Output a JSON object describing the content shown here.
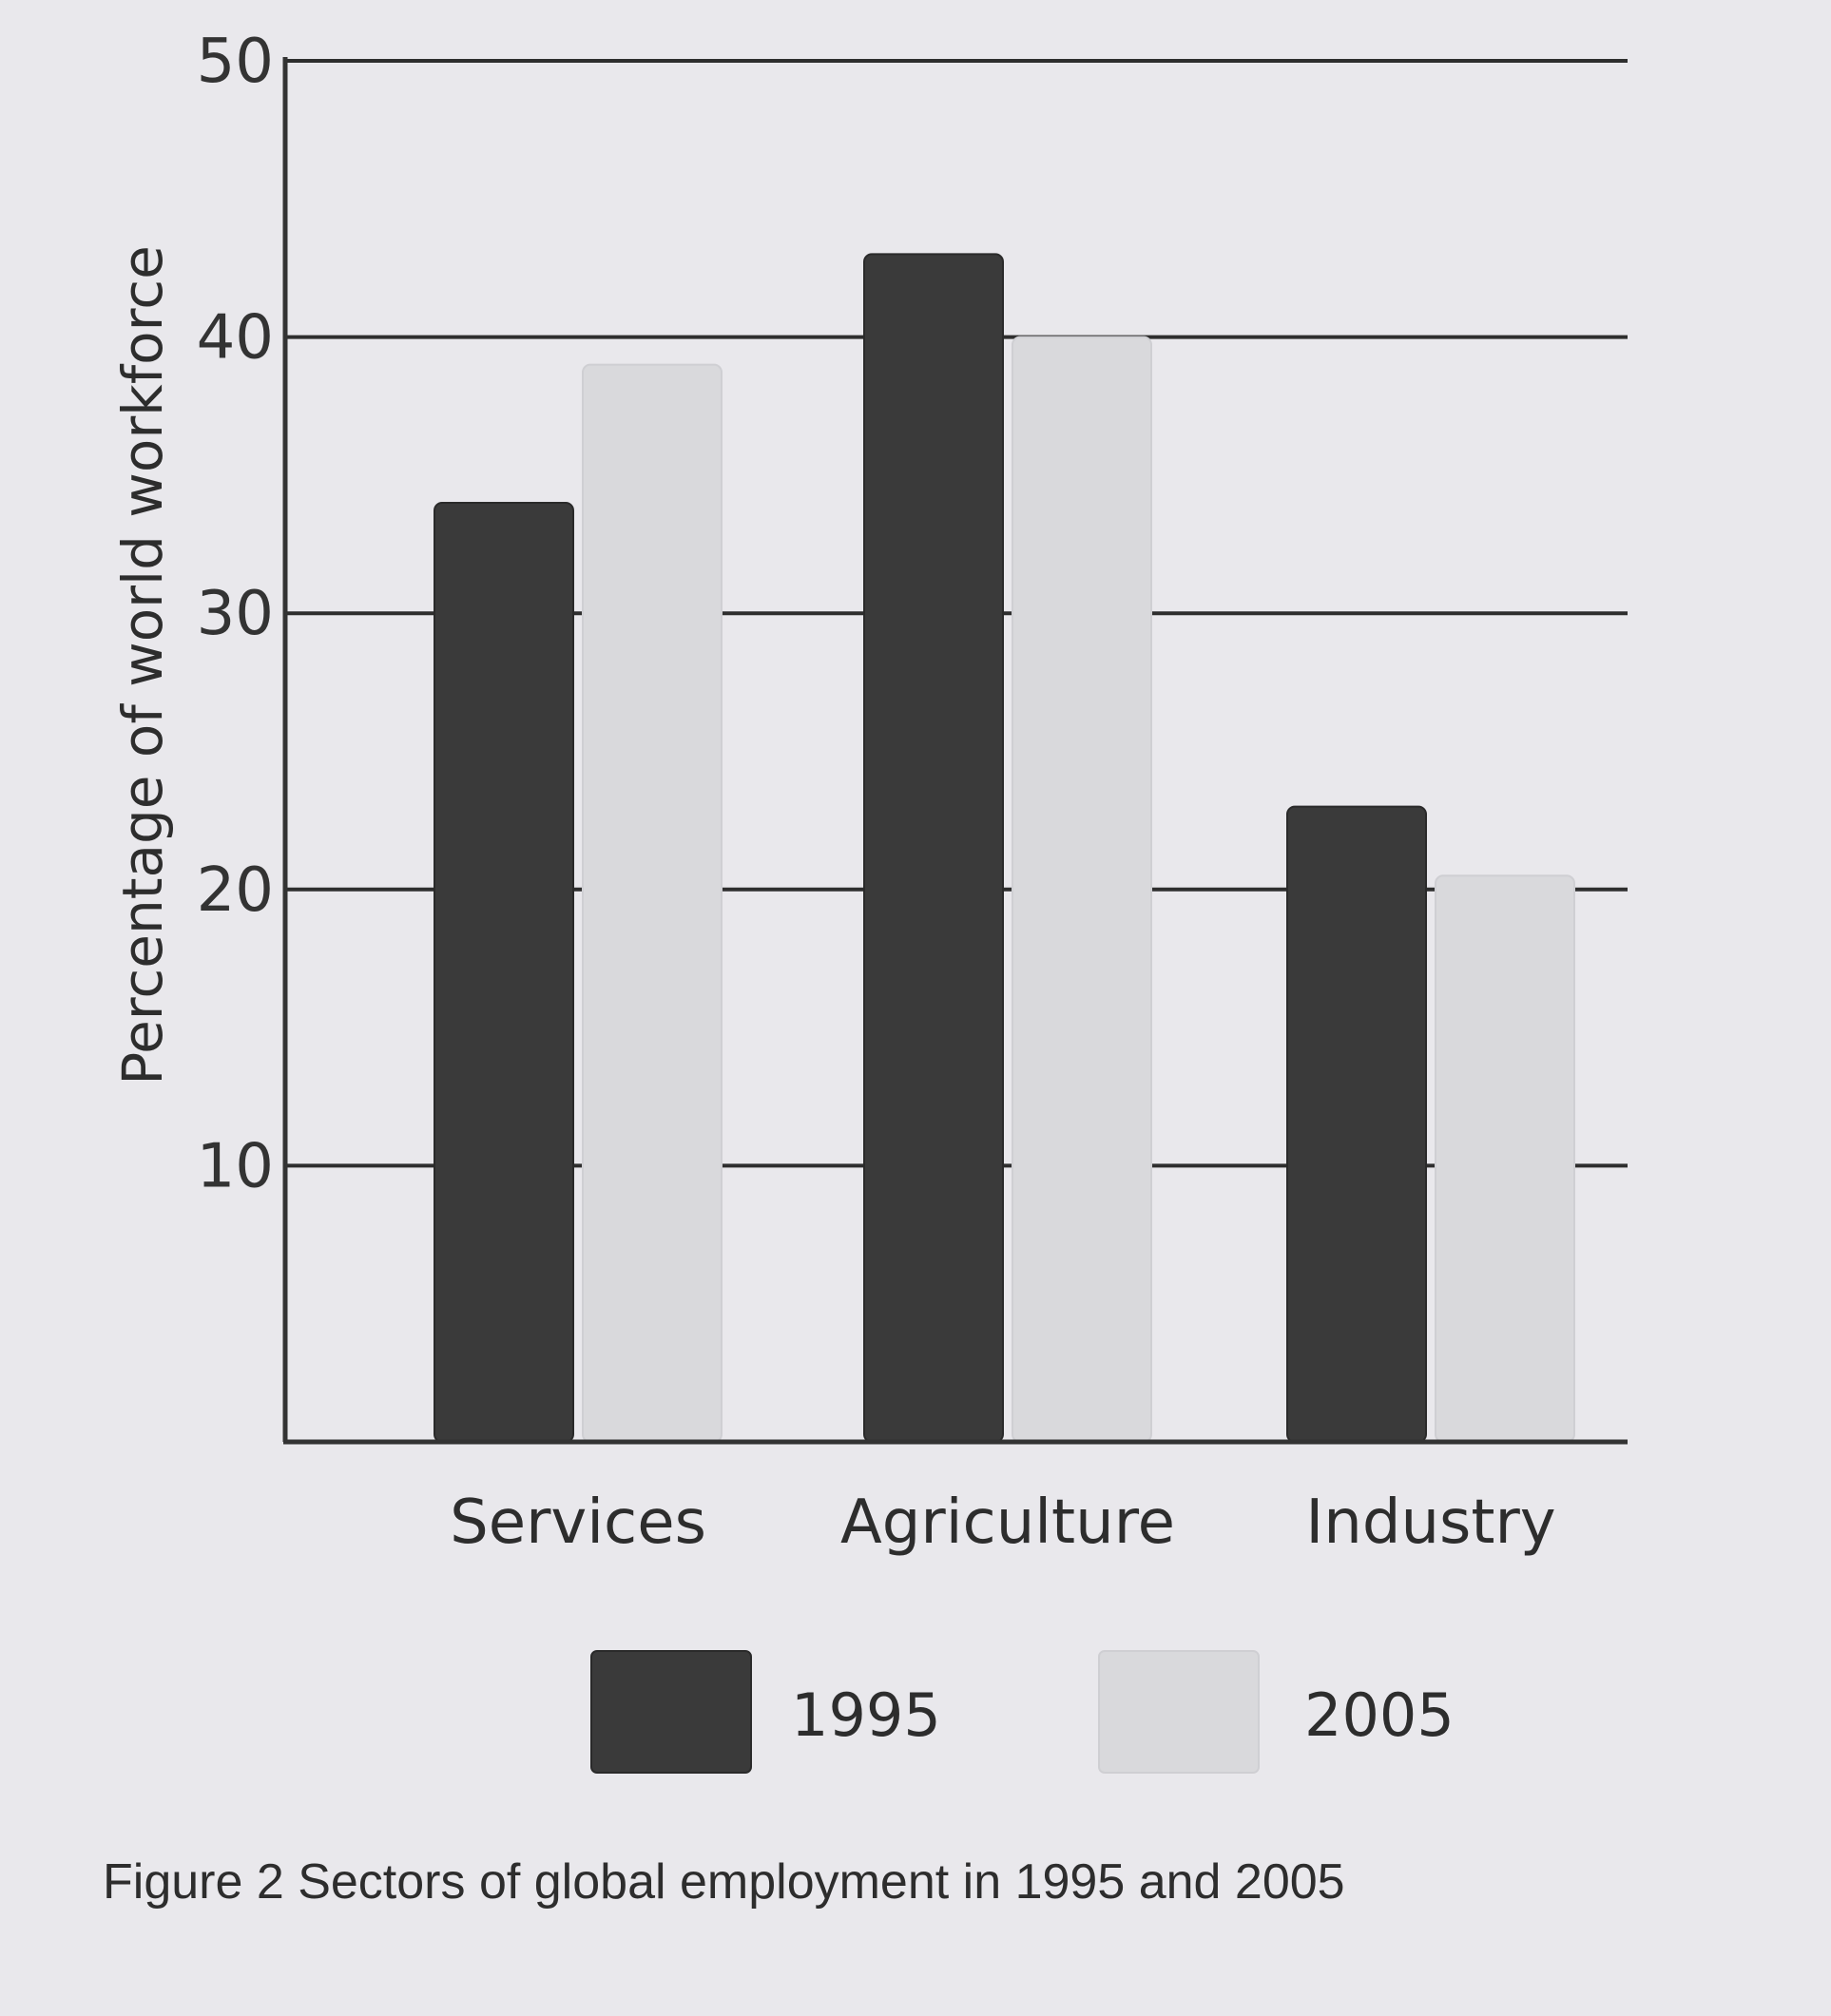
{
  "chart_data": {
    "type": "bar",
    "title": "",
    "xlabel": "",
    "ylabel": "Percentage of world workforce",
    "ylim": [
      0,
      50
    ],
    "yticks": [
      "10",
      "20",
      "30",
      "40",
      "50"
    ],
    "grid": true,
    "legend_position": "bottom",
    "categories": [
      "Services",
      "Agriculture",
      "Industry"
    ],
    "series": [
      {
        "name": "1995",
        "values": [
          34,
          43,
          23
        ],
        "color": "#3a3a3a"
      },
      {
        "name": "2005",
        "values": [
          39,
          40,
          20.5
        ],
        "color": "#d9d9dc"
      }
    ]
  },
  "caption": "Figure 2  Sectors of global employment in 1995 and 2005"
}
